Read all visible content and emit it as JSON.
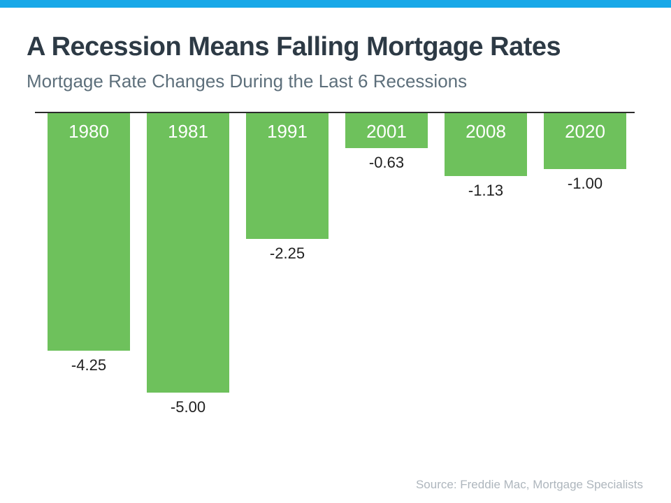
{
  "accent_bar_color": "#18a8e8",
  "header": {
    "title": "A Recession Means Falling Mortgage Rates",
    "subtitle": "Mortgage Rate Changes During the Last 6 Recessions"
  },
  "footer": {
    "source": "Source: Freddie Mac, Mortgage Specialists"
  },
  "chart_data": {
    "type": "bar",
    "title": "A Recession Means Falling Mortgage Rates",
    "subtitle": "Mortgage Rate Changes During the Last 6 Recessions",
    "categories": [
      "1980",
      "1981",
      "1991",
      "2001",
      "2008",
      "2020"
    ],
    "values": [
      -4.25,
      -5.0,
      -2.25,
      -0.63,
      -1.13,
      -1.0
    ],
    "value_labels": [
      "-4.25",
      "-5.00",
      "-2.25",
      "-0.63",
      "-1.13",
      "-1.00"
    ],
    "xlabel": "",
    "ylabel": "",
    "ylim": [
      -5.5,
      0
    ],
    "baseline": 0,
    "bar_color": "#6ec15c",
    "category_label_color": "#ffffff",
    "value_label_color": "#1f1f1f",
    "category_position": "inside-bar-top",
    "value_position": "below-bar",
    "grid": false,
    "legend": false
  }
}
